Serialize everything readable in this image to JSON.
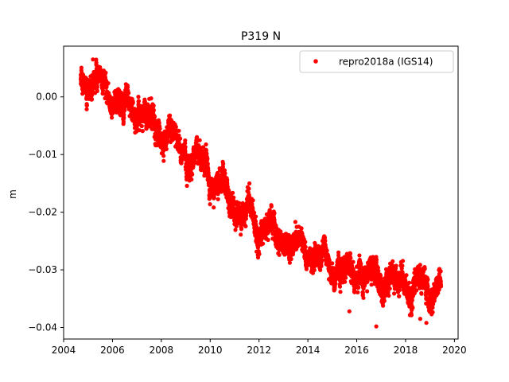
{
  "chart_data": {
    "type": "scatter",
    "title": "P319 N",
    "xlabel": "",
    "ylabel": "m",
    "xlim": [
      2004.0,
      2020.15
    ],
    "ylim": [
      -0.042,
      0.0088
    ],
    "x_ticks": [
      2004,
      2006,
      2008,
      2010,
      2012,
      2014,
      2016,
      2018,
      2020
    ],
    "x_tick_labels": [
      "2004",
      "2006",
      "2008",
      "2010",
      "2012",
      "2014",
      "2016",
      "2018",
      "2020"
    ],
    "y_ticks": [
      0.0,
      -0.01,
      -0.02,
      -0.03,
      -0.04
    ],
    "y_tick_labels": [
      "0.00",
      "−0.01",
      "−0.02",
      "−0.03",
      "−0.04"
    ],
    "grid": false,
    "legend": {
      "position": "top-right",
      "entries": [
        "repro2018a (IGS14)"
      ]
    },
    "series": [
      {
        "name": "repro2018a (IGS14)",
        "color": "#ff0000",
        "marker": "circle",
        "x_start": 2004.7,
        "x_end": 2019.45,
        "trend_x": [
          2004.7,
          2005.5,
          2006.5,
          2007.5,
          2008.5,
          2009.5,
          2010.5,
          2011.5,
          2012.5,
          2013.5,
          2014.5,
          2015.5,
          2016.5,
          2017.5,
          2018.5,
          2019.45
        ],
        "trend_y": [
          0.0025,
          0.0015,
          -0.0015,
          -0.004,
          -0.0075,
          -0.0105,
          -0.016,
          -0.0205,
          -0.0235,
          -0.0255,
          -0.0285,
          -0.0295,
          -0.031,
          -0.0315,
          -0.033,
          -0.033
        ],
        "noise_std": 0.0015,
        "seasonal_amplitude": 0.0015,
        "outliers": [
          {
            "x": 2016.8,
            "y": -0.0398
          },
          {
            "x": 2018.85,
            "y": -0.0392
          },
          {
            "x": 2015.7,
            "y": -0.0372
          },
          {
            "x": 2018.6,
            "y": -0.0385
          },
          {
            "x": 2005.2,
            "y": 0.0065
          }
        ]
      }
    ]
  }
}
